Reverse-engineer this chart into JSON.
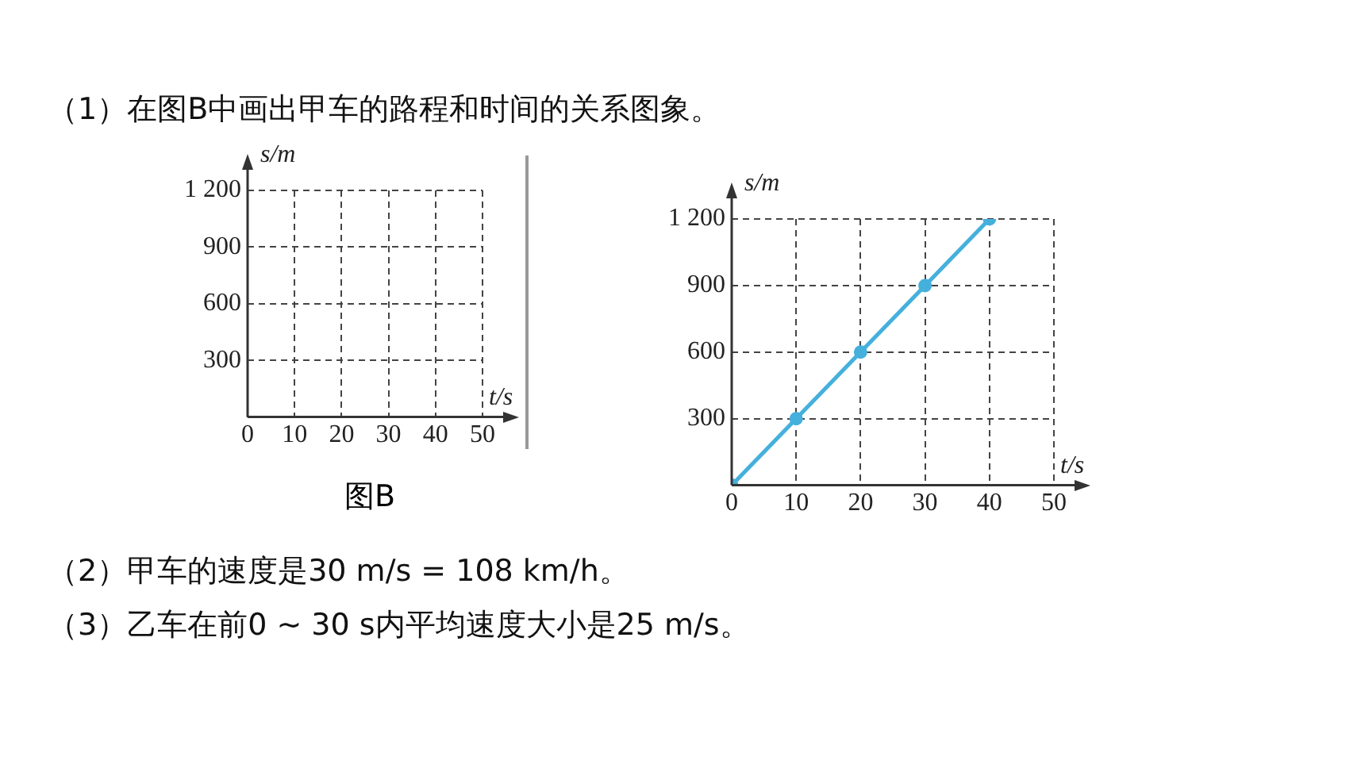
{
  "chart_data": [
    {
      "type": "line",
      "title": "（1）在图B中画出甲车的路程和时间的关系图象。",
      "xlabel": "t/s",
      "ylabel": "s/m",
      "annotations": [
        "图B"
      ],
      "xlim": [
        0,
        50
      ],
      "ylim": [
        0,
        1200
      ],
      "xticks": [
        0,
        10,
        20,
        30,
        40,
        50
      ],
      "yticks": [
        {
          "value": 300,
          "label": "300"
        },
        {
          "value": 600,
          "label": "600"
        },
        {
          "value": 900,
          "label": "900"
        },
        {
          "value": 1200,
          "label": "1 200"
        }
      ],
      "grid": true,
      "legend": false
    },
    {
      "type": "line",
      "xlabel": "t/s",
      "ylabel": "s/m",
      "annotations": [
        "（2）甲车的速度是30 m/s = 108 km/h。",
        "（3）乙车在前0 ~ 30 s内平均速度大小是25 m/s。"
      ],
      "x": [
        0,
        10,
        20,
        30,
        40
      ],
      "series": [
        {
          "color": "#45b0dc",
          "values": [
            0,
            300,
            600,
            900,
            1200
          ]
        }
      ],
      "xlim": [
        0,
        50
      ],
      "ylim": [
        0,
        1200
      ],
      "xticks": [
        0,
        10,
        20,
        30,
        40,
        50
      ],
      "yticks": [
        {
          "value": 300,
          "label": "300"
        },
        {
          "value": 600,
          "label": "600"
        },
        {
          "value": 900,
          "label": "900"
        },
        {
          "value": 1200,
          "label": "1 200"
        }
      ],
      "grid": true,
      "legend": false,
      "marker": "circle",
      "line_style": "solid"
    }
  ]
}
